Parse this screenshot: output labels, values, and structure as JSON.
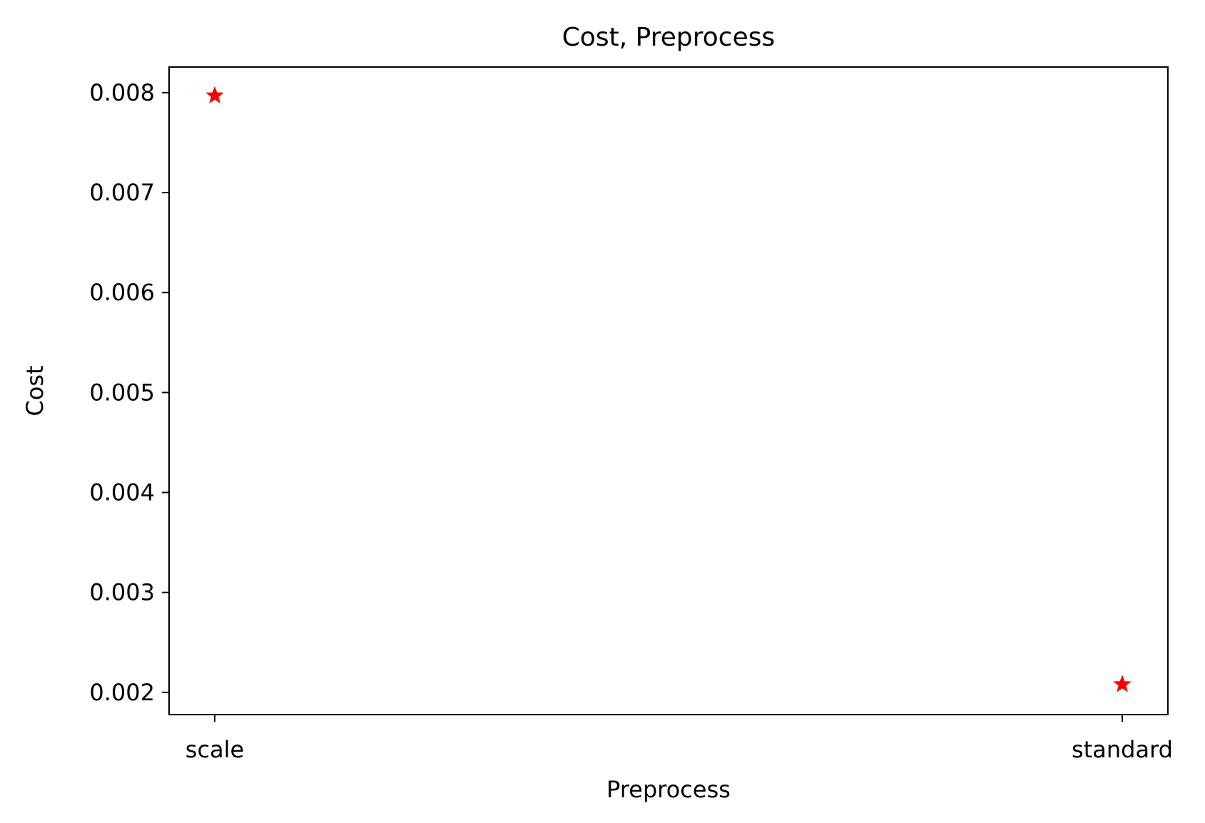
{
  "chart_data": {
    "type": "scatter",
    "title": "Cost, Preprocess",
    "xlabel": "Preprocess",
    "ylabel": "Cost",
    "categories": [
      "scale",
      "standard"
    ],
    "values": [
      0.00797,
      0.00208
    ],
    "yticks": [
      "0.002",
      "0.003",
      "0.004",
      "0.005",
      "0.006",
      "0.007",
      "0.008"
    ],
    "ylim": [
      0.001778,
      0.008256
    ],
    "marker": "star",
    "marker_color": "#ff0000",
    "grid": false,
    "legend": "none"
  }
}
